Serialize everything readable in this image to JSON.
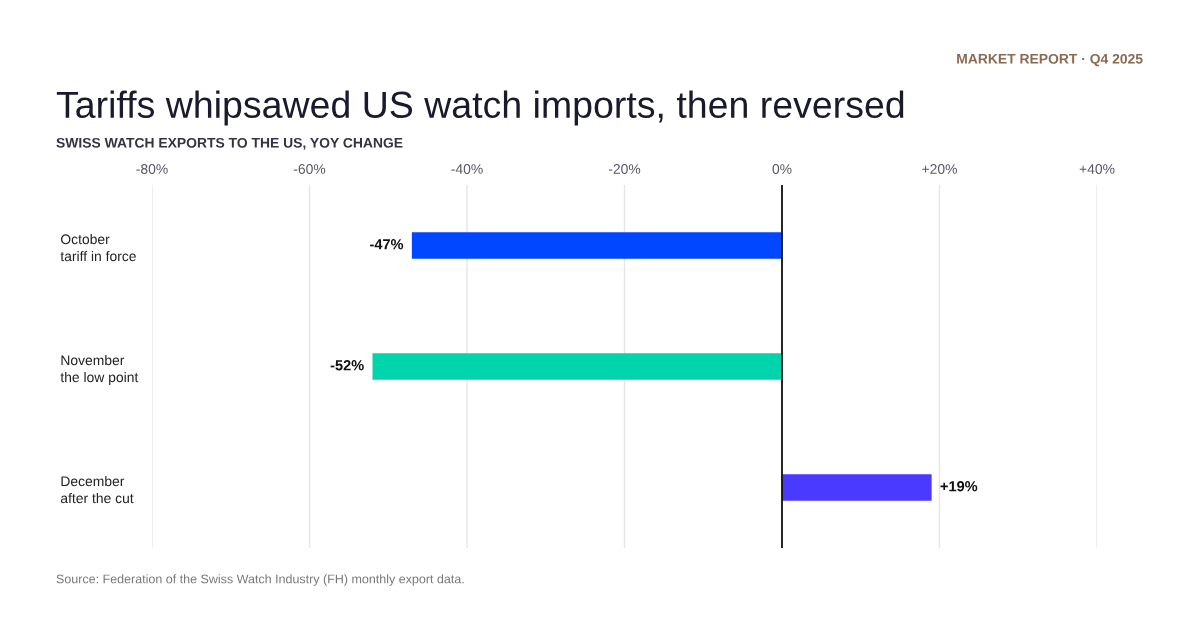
{
  "chart_data": {
    "type": "bar",
    "orientation": "horizontal",
    "title": "Tariffs whipsawed US watch imports, then reversed",
    "subtitle": "SWISS WATCH EXPORTS TO THE US, YOY CHANGE",
    "categories": [
      "October\ntariff in force",
      "November\nthe low point",
      "December\nafter the cut"
    ],
    "values": [
      -47,
      -52,
      19
    ],
    "colors": [
      "#0047ff",
      "#00d4aa",
      "#4a3aff"
    ],
    "value_labels": [
      "-47%",
      "-52%",
      "+19%"
    ],
    "xlim": [
      -80,
      40
    ],
    "xticks": [
      {
        "value": -80,
        "label": "-80%"
      },
      {
        "value": -60,
        "label": "-60%"
      },
      {
        "value": -40,
        "label": "-40%"
      },
      {
        "value": -20,
        "label": "-20%"
      },
      {
        "value": 0,
        "label": "0%"
      },
      {
        "value": 20,
        "label": "+20%"
      },
      {
        "value": 40,
        "label": "+40%"
      }
    ],
    "grid": "x",
    "ref_lines": [
      {
        "axis": "x",
        "value": 0,
        "color": "#111111"
      }
    ],
    "annotations": [
      "MARKET REPORT · Q4 2025",
      "Source: Federation of the Swiss Watch Industry (FH) monthly export data."
    ]
  }
}
